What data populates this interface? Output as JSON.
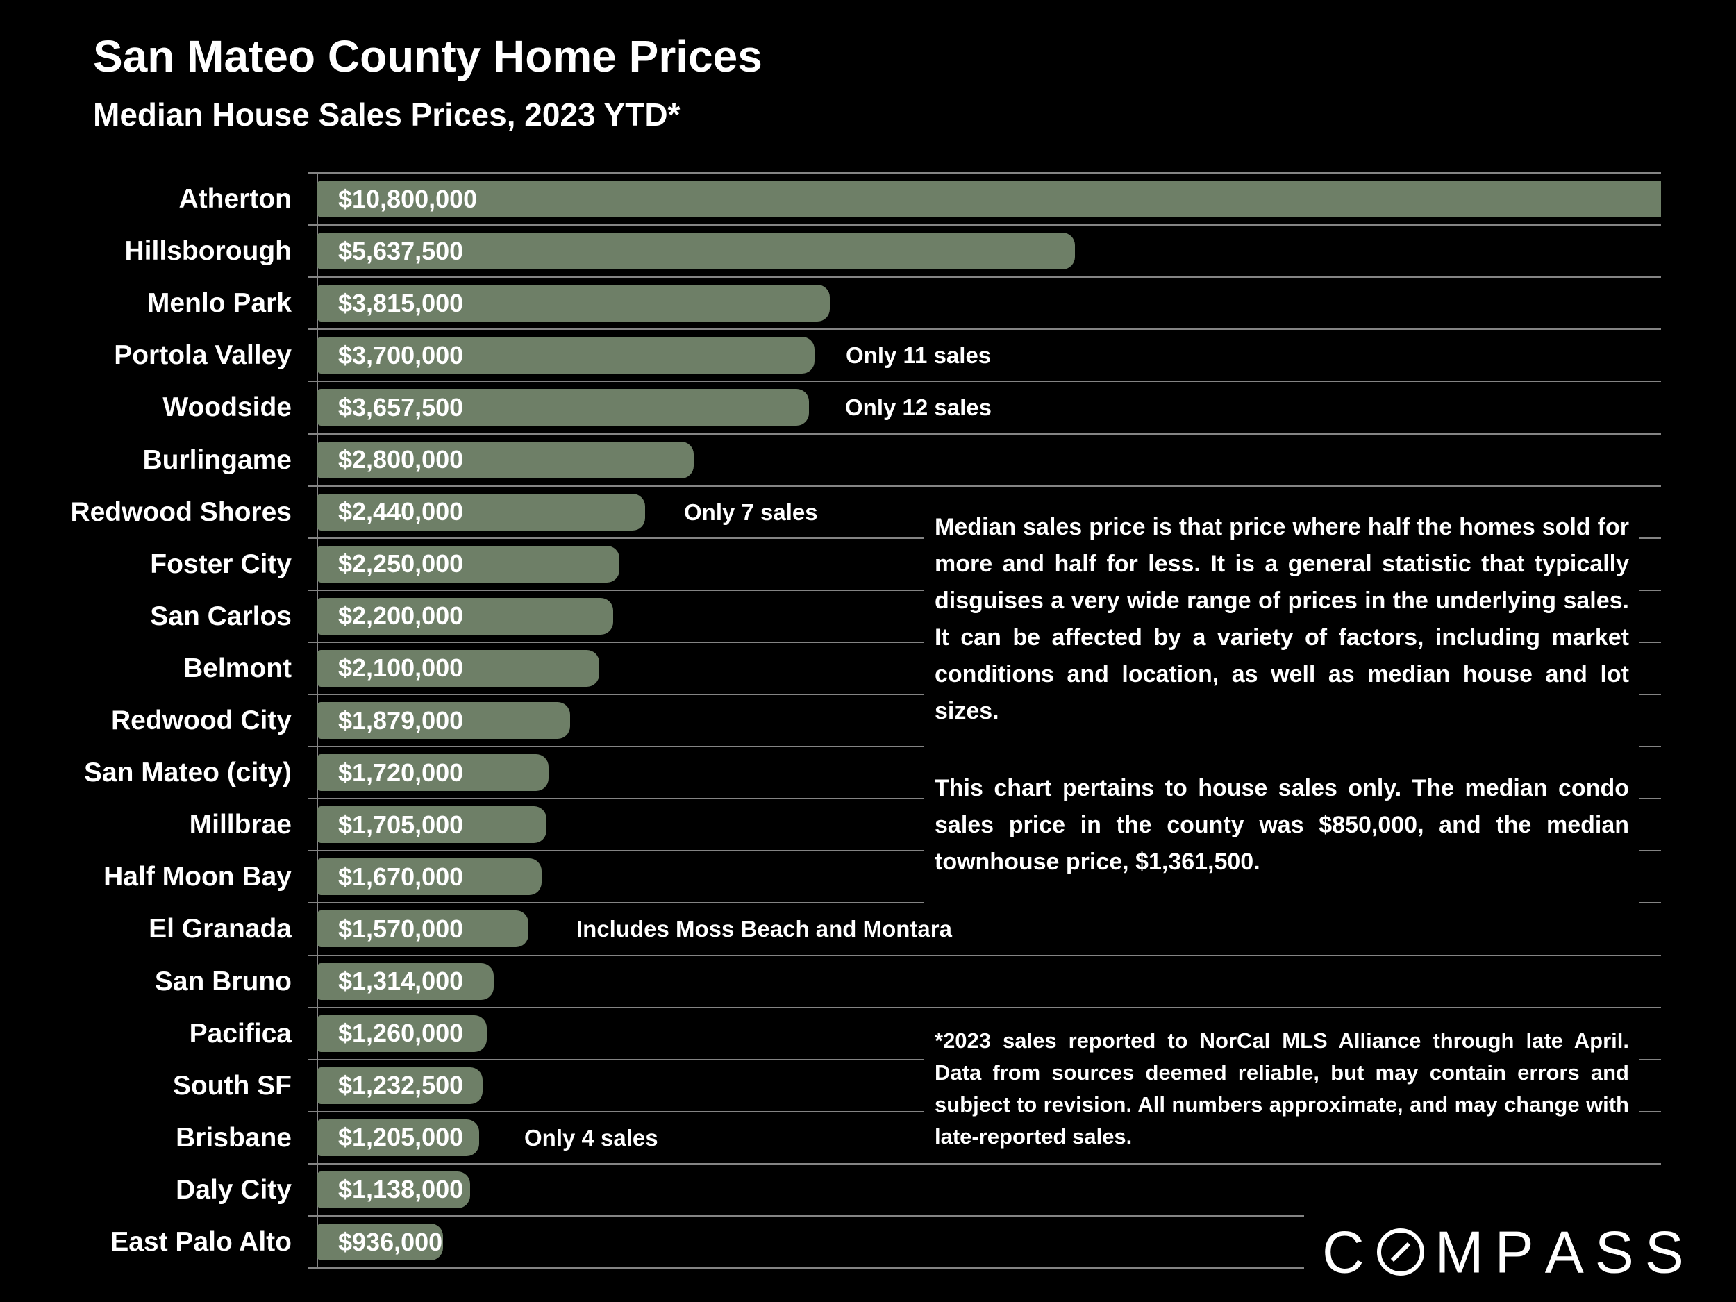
{
  "header": {
    "title": "San Mateo County Home Prices",
    "subtitle": "Median House Sales Prices, 2023 YTD*"
  },
  "chart_data": {
    "type": "bar",
    "orientation": "horizontal",
    "title": "San Mateo County Home Prices",
    "subtitle": "Median House Sales Prices, 2023 YTD*",
    "xlabel": "",
    "ylabel": "",
    "xlim": [
      0,
      10000000
    ],
    "grid": "row-separators",
    "bar_color": "#6e7f67",
    "categories": [
      "Atherton",
      "Hillsborough",
      "Menlo Park",
      "Portola Valley",
      "Woodside",
      "Burlingame",
      "Redwood Shores",
      "Foster City",
      "San Carlos",
      "Belmont",
      "Redwood City",
      "San Mateo (city)",
      "Millbrae",
      "Half Moon Bay",
      "El Granada",
      "San Bruno",
      "Pacifica",
      "South SF",
      "Brisbane",
      "Daly City",
      "East Palo Alto"
    ],
    "values": [
      10800000,
      5637500,
      3815000,
      3700000,
      3657500,
      2800000,
      2440000,
      2250000,
      2200000,
      2100000,
      1879000,
      1720000,
      1705000,
      1670000,
      1570000,
      1314000,
      1260000,
      1232500,
      1205000,
      1138000,
      936000
    ],
    "value_labels": [
      "$10,800,000",
      "$5,637,500",
      "$3,815,000",
      "$3,700,000",
      "$3,657,500",
      "$2,800,000",
      "$2,440,000",
      "$2,250,000",
      "$2,200,000",
      "$2,100,000",
      "$1,879,000",
      "$1,720,000",
      "$1,705,000",
      "$1,670,000",
      "$1,570,000",
      "$1,314,000",
      "$1,260,000",
      "$1,232,500",
      "$1,205,000",
      "$1,138,000",
      "$936,000"
    ],
    "annotations": {
      "Portola Valley": "Only 11 sales",
      "Woodside": "Only 12 sales",
      "Redwood Shores": "Only 7 sales",
      "El Granada": "Includes Moss Beach and Montara",
      "Brisbane": "Only 4 sales"
    },
    "clipped_categories": [
      "Atherton"
    ]
  },
  "commentary": {
    "para1": "Median sales price is that price where half the homes sold for more and half for less. It is a general statistic that typically disguises a very wide range of prices in the underlying sales. It can be affected by a variety of factors, including market conditions and location, as well as median house and lot sizes.",
    "para2": "This chart pertains to house sales only. The median condo sales price in the county was $850,000, and the median townhouse price, $1,361,500."
  },
  "footnote": "*2023 sales reported to NorCal MLS Alliance through late April. Data from sources deemed reliable, but may contain errors and subject to revision. All numbers approximate, and may change with late-reported sales.",
  "logo": {
    "text": "COMPASS"
  },
  "colors": {
    "background": "#000000",
    "bar": "#6e7f67",
    "gridline": "#848484",
    "text": "#ffffff"
  }
}
